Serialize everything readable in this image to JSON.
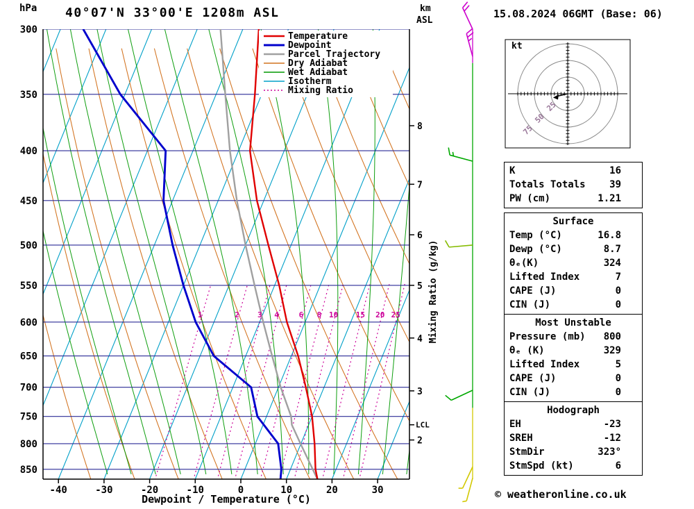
{
  "header": {
    "station": "40°07'N 33°00'E 1208m ASL",
    "datetime": "15.08.2024 06GMT (Base: 06)"
  },
  "footer": {
    "copyright": "© weatheronline.co.uk"
  },
  "axes": {
    "pressure_unit": "hPa",
    "pressure_ticks": [
      300,
      350,
      400,
      450,
      500,
      550,
      600,
      650,
      700,
      750,
      800,
      850
    ],
    "temp_ticks": [
      -40,
      -30,
      -20,
      -10,
      0,
      10,
      20,
      30
    ],
    "temp_axis_label": "Dewpoint / Temperature (°C)",
    "km_unit_line1": "km",
    "km_unit_line2": "ASL",
    "km_ticks": [
      {
        "label": "8",
        "hpa": 377
      },
      {
        "label": "7",
        "hpa": 433
      },
      {
        "label": "6",
        "hpa": 488
      },
      {
        "label": "5",
        "hpa": 550
      },
      {
        "label": "4",
        "hpa": 623
      },
      {
        "label": "3",
        "hpa": 706
      },
      {
        "label": "2",
        "hpa": 793
      }
    ],
    "lcl": {
      "label": "LCL",
      "hpa": 765
    },
    "mixing_axis_label": "Mixing Ratio (g/kg)"
  },
  "legend": [
    {
      "label": "Temperature",
      "key": "temperature"
    },
    {
      "label": "Dewpoint",
      "key": "dewpoint"
    },
    {
      "label": "Parcel Trajectory",
      "key": "parcel"
    },
    {
      "label": "Dry Adiabat",
      "key": "dry_adiabat"
    },
    {
      "label": "Wet Adiabat",
      "key": "wet_adiabat"
    },
    {
      "label": "Isotherm",
      "key": "isotherm"
    },
    {
      "label": "Mixing Ratio",
      "key": "mixing_ratio",
      "dashed": true
    }
  ],
  "colors": {
    "temperature": "#e00000",
    "dewpoint": "#0000cc",
    "parcel": "#a0a0a0",
    "dry_adiabat": "#d2721e",
    "wet_adiabat": "#009900",
    "isotherm": "#00a0c8",
    "mixing_ratio": "#cc0099",
    "pressure_line": "#2a2a96",
    "axis": "#000000",
    "barb_magenta": "#cc00cc",
    "barb_green": "#00a800",
    "barb_lightgreen": "#85bb00",
    "barb_yellow": "#d2c800"
  },
  "chart_data": {
    "type": "skewt_log_p_sounding",
    "pressure_range_hpa": [
      300,
      870
    ],
    "temperature_profile": {
      "p_hpa": [
        870,
        850,
        800,
        750,
        700,
        650,
        600,
        550,
        500,
        450,
        400,
        350,
        300
      ],
      "t_c": [
        16.8,
        15.5,
        13,
        10,
        6,
        1.5,
        -4,
        -9,
        -15,
        -21.5,
        -27.5,
        -31.5,
        -36.5
      ]
    },
    "dewpoint_profile": {
      "p_hpa": [
        870,
        850,
        800,
        750,
        700,
        650,
        600,
        550,
        500,
        450,
        400,
        350,
        300
      ],
      "t_c": [
        8.7,
        8,
        5,
        -2,
        -6,
        -17,
        -24,
        -30,
        -36,
        -42,
        -46,
        -61,
        -75
      ]
    },
    "parcel_profile": {
      "p_hpa": [
        870,
        800,
        765,
        750,
        700,
        650,
        600,
        550,
        500,
        450,
        400,
        350,
        300
      ],
      "t_c": [
        16.8,
        9.9,
        6.3,
        5.4,
        0.5,
        -4.2,
        -9.2,
        -14.4,
        -20,
        -25.9,
        -31.9,
        -38,
        -44.9
      ]
    },
    "mixing_ratio_lines_gkg": [
      1,
      2,
      3,
      4,
      6,
      8,
      10,
      15,
      20,
      25
    ],
    "isotherm_step_c": 10,
    "dry_adiabat_step_k": 10,
    "wet_adiabat_step_c": 5
  },
  "wind_barbs": [
    {
      "hpa": 300,
      "dir_deg": 335,
      "speed_kt": 20,
      "color": "barb_magenta"
    },
    {
      "hpa": 320,
      "dir_deg": 345,
      "speed_kt": 25,
      "color": "barb_magenta"
    },
    {
      "hpa": 410,
      "dir_deg": 285,
      "speed_kt": 15,
      "color": "barb_green"
    },
    {
      "hpa": 500,
      "dir_deg": 265,
      "speed_kt": 10,
      "color": "barb_lightgreen"
    },
    {
      "hpa": 705,
      "dir_deg": 245,
      "speed_kt": 10,
      "color": "barb_green"
    },
    {
      "hpa": 845,
      "dir_deg": 205,
      "speed_kt": 5,
      "color": "barb_yellow"
    },
    {
      "hpa": 868,
      "dir_deg": 195,
      "speed_kt": 5,
      "color": "barb_yellow"
    }
  ],
  "staff_segments": [
    {
      "from_hpa": 300,
      "to_hpa": 325,
      "color": "barb_magenta"
    },
    {
      "from_hpa": 325,
      "to_hpa": 735,
      "color": "barb_green"
    },
    {
      "from_hpa": 735,
      "to_hpa": 870,
      "color": "barb_yellow"
    }
  ],
  "hodograph": {
    "unit_label": "kt",
    "rings_kt": [
      25,
      50,
      75
    ],
    "storm_dir_deg": 323,
    "storm_speed_kt": 6
  },
  "table": {
    "boxes": [
      {
        "rows": [
          [
            "K",
            "16"
          ],
          [
            "Totals Totals",
            "39"
          ],
          [
            "PW (cm)",
            "1.21"
          ]
        ]
      },
      {
        "header": "Surface",
        "rows": [
          [
            "Temp (°C)",
            "16.8"
          ],
          [
            "Dewp (°C)",
            "8.7"
          ],
          [
            "θₑ(K)",
            "324"
          ],
          [
            "Lifted Index",
            "7"
          ],
          [
            "CAPE (J)",
            "0"
          ],
          [
            "CIN (J)",
            "0"
          ]
        ]
      },
      {
        "header": "Most Unstable",
        "rows": [
          [
            "Pressure (mb)",
            "800"
          ],
          [
            "θₑ (K)",
            "329"
          ],
          [
            "Lifted Index",
            "5"
          ],
          [
            "CAPE (J)",
            "0"
          ],
          [
            "CIN (J)",
            "0"
          ]
        ]
      },
      {
        "header": "Hodograph",
        "rows": [
          [
            "EH",
            "-23"
          ],
          [
            "SREH",
            "-12"
          ],
          [
            "StmDir",
            "323°"
          ],
          [
            "StmSpd (kt)",
            "6"
          ]
        ]
      }
    ]
  }
}
